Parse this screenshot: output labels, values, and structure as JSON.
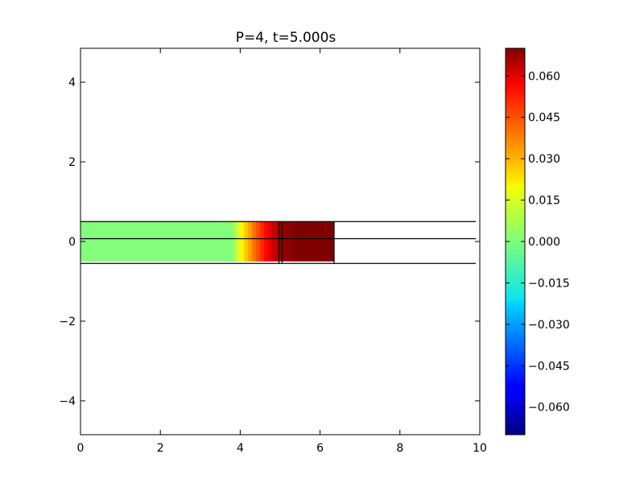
{
  "chart_data": {
    "type": "heatmap",
    "title": "P=4, t=5.000s",
    "xlabel": "",
    "ylabel": "",
    "xlim": [
      0,
      10
    ],
    "ylim": [
      -4.85,
      4.85
    ],
    "xticks": [
      0,
      2,
      4,
      6,
      8,
      10
    ],
    "xtick_labels": [
      "0",
      "2",
      "4",
      "6",
      "8",
      "10"
    ],
    "yticks": [
      -4,
      -2,
      0,
      2,
      4
    ],
    "ytick_labels": [
      "−4",
      "−2",
      "0",
      "2",
      "4"
    ],
    "grid": false,
    "colormap": "jet",
    "colorbar": {
      "range": [
        -0.07,
        0.07
      ],
      "ticks": [
        -0.06,
        -0.045,
        -0.03,
        -0.015,
        0.0,
        0.015,
        0.03,
        0.045,
        0.06
      ],
      "tick_labels": [
        "−0.060",
        "−0.045",
        "−0.030",
        "−0.015",
        "0.000",
        "0.015",
        "0.030",
        "0.045",
        "0.060"
      ]
    },
    "field": {
      "y_range": [
        -0.5,
        0.5
      ],
      "cells": [
        {
          "x0": 0.0,
          "x1": 3.8,
          "value": 0.0005
        },
        {
          "x0": 3.8,
          "x1": 3.9,
          "value": 0.004
        },
        {
          "x0": 3.9,
          "x1": 4.0,
          "value": 0.012
        },
        {
          "x0": 4.0,
          "x1": 4.1,
          "value": 0.019
        },
        {
          "x0": 4.1,
          "x1": 4.2,
          "value": 0.025
        },
        {
          "x0": 4.2,
          "x1": 4.3,
          "value": 0.031
        },
        {
          "x0": 4.3,
          "x1": 4.4,
          "value": 0.037
        },
        {
          "x0": 4.4,
          "x1": 4.5,
          "value": 0.042
        },
        {
          "x0": 4.5,
          "x1": 4.6,
          "value": 0.047
        },
        {
          "x0": 4.6,
          "x1": 4.7,
          "value": 0.052
        },
        {
          "x0": 4.7,
          "x1": 4.8,
          "value": 0.056
        },
        {
          "x0": 4.8,
          "x1": 4.9,
          "value": 0.06
        },
        {
          "x0": 4.9,
          "x1": 5.0,
          "value": 0.063
        },
        {
          "x0": 5.0,
          "x1": 5.3,
          "value": 0.068
        },
        {
          "x0": 5.3,
          "x1": 6.35,
          "value": 0.07
        }
      ]
    },
    "lines": [
      {
        "x": [
          0,
          9.9
        ],
        "y": [
          0.5,
          0.5
        ]
      },
      {
        "x": [
          0,
          9.9
        ],
        "y": [
          0.07,
          0.07
        ]
      },
      {
        "x": [
          0,
          9.9
        ],
        "y": [
          -0.55,
          -0.55
        ]
      },
      {
        "x": [
          6.35,
          6.35
        ],
        "y": [
          -0.55,
          0.5
        ]
      },
      {
        "x": [
          4.97,
          4.97
        ],
        "y": [
          -0.55,
          0.5
        ]
      },
      {
        "x": [
          5.05,
          5.05
        ],
        "y": [
          -0.55,
          0.5
        ]
      }
    ]
  }
}
